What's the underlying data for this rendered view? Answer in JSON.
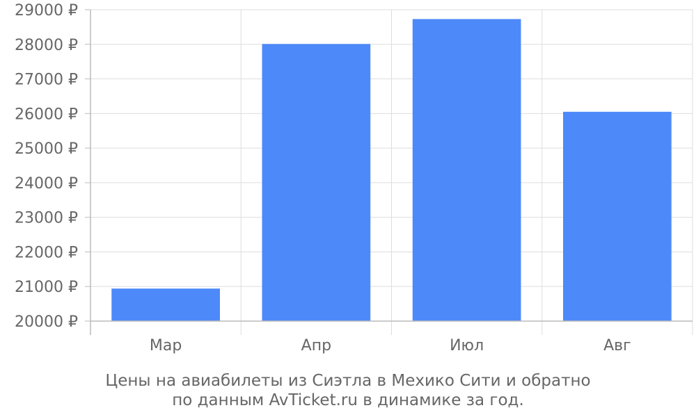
{
  "chart_data": {
    "type": "bar",
    "categories": [
      "Мар",
      "Апр",
      "Июл",
      "Авг"
    ],
    "values": [
      20940,
      28010,
      28730,
      26050
    ],
    "ylim": [
      20000,
      29000
    ],
    "yticks": [
      20000,
      21000,
      22000,
      23000,
      24000,
      25000,
      26000,
      27000,
      28000,
      29000
    ],
    "ytick_suffix": " ₽",
    "grid": true,
    "legend": "none",
    "bar_color": "#4d89f9",
    "grid_color": "#dddddd",
    "axis_color": "#bbbbbb"
  },
  "caption": {
    "line1": "Цены на авиабилеты из Сиэтла в Мехико Сити и обратно",
    "line2": "по данным AvTicket.ru в динамике за год."
  }
}
